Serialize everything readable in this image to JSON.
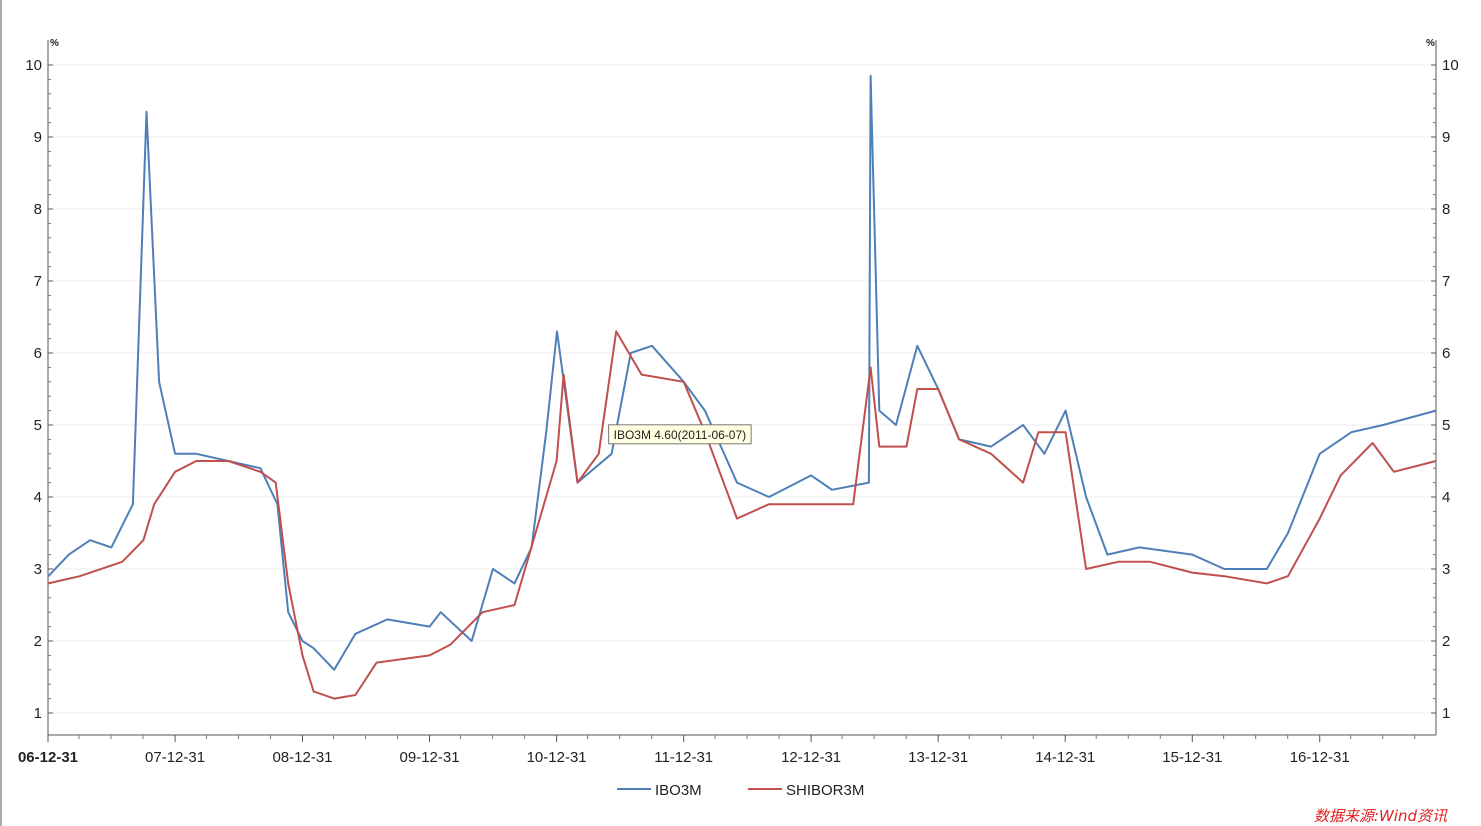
{
  "chart_data": {
    "type": "line",
    "title": "",
    "unit_left": "%",
    "unit_right": "%",
    "ylim": [
      1,
      10
    ],
    "y_ticks": [
      1,
      2,
      3,
      4,
      5,
      6,
      7,
      8,
      9,
      10
    ],
    "x_tick_labels": [
      "06-12-31",
      "07-12-31",
      "08-12-31",
      "09-12-31",
      "10-12-31",
      "11-12-31",
      "12-12-31",
      "13-12-31",
      "14-12-31",
      "15-12-31",
      "16-12-31"
    ],
    "x_range": [
      "2006-12-31",
      "2017-11-30"
    ],
    "grid": true,
    "legend_position": "bottom-center",
    "series": [
      {
        "name": "IBO3M",
        "color": "#4f7fb8",
        "points": [
          [
            "2007-01-01",
            2.9
          ],
          [
            "2007-03-01",
            3.2
          ],
          [
            "2007-05-01",
            3.4
          ],
          [
            "2007-07-01",
            3.3
          ],
          [
            "2007-09-01",
            3.9
          ],
          [
            "2007-10-10",
            9.35
          ],
          [
            "2007-11-15",
            5.6
          ],
          [
            "2007-12-31",
            4.6
          ],
          [
            "2008-03-01",
            4.6
          ],
          [
            "2008-06-01",
            4.5
          ],
          [
            "2008-09-01",
            4.4
          ],
          [
            "2008-10-20",
            3.9
          ],
          [
            "2008-11-20",
            2.4
          ],
          [
            "2008-12-31",
            2.0
          ],
          [
            "2009-02-01",
            1.9
          ],
          [
            "2009-04-01",
            1.6
          ],
          [
            "2009-06-01",
            2.1
          ],
          [
            "2009-09-01",
            2.3
          ],
          [
            "2009-12-31",
            2.2
          ],
          [
            "2010-02-01",
            2.4
          ],
          [
            "2010-05-01",
            2.0
          ],
          [
            "2010-07-01",
            3.0
          ],
          [
            "2010-09-01",
            2.8
          ],
          [
            "2010-10-20",
            3.3
          ],
          [
            "2010-12-01",
            4.9
          ],
          [
            "2011-01-01",
            6.3
          ],
          [
            "2011-03-01",
            4.2
          ],
          [
            "2011-06-07",
            4.6
          ],
          [
            "2011-08-01",
            6.0
          ],
          [
            "2011-10-01",
            6.1
          ],
          [
            "2011-12-31",
            5.6
          ],
          [
            "2012-03-01",
            5.2
          ],
          [
            "2012-06-01",
            4.2
          ],
          [
            "2012-09-01",
            4.0
          ],
          [
            "2012-12-31",
            4.3
          ],
          [
            "2013-03-01",
            4.1
          ],
          [
            "2013-06-15",
            4.2
          ],
          [
            "2013-06-20",
            9.85
          ],
          [
            "2013-07-15",
            5.2
          ],
          [
            "2013-09-01",
            5.0
          ],
          [
            "2013-11-01",
            6.1
          ],
          [
            "2013-12-31",
            5.5
          ],
          [
            "2014-03-01",
            4.8
          ],
          [
            "2014-06-01",
            4.7
          ],
          [
            "2014-09-01",
            5.0
          ],
          [
            "2014-11-01",
            4.6
          ],
          [
            "2015-01-01",
            5.2
          ],
          [
            "2015-03-01",
            4.0
          ],
          [
            "2015-05-01",
            3.2
          ],
          [
            "2015-08-01",
            3.3
          ],
          [
            "2015-12-31",
            3.2
          ],
          [
            "2016-04-01",
            3.0
          ],
          [
            "2016-08-01",
            3.0
          ],
          [
            "2016-10-01",
            3.5
          ],
          [
            "2016-12-31",
            4.6
          ],
          [
            "2017-04-01",
            4.9
          ],
          [
            "2017-07-01",
            5.0
          ],
          [
            "2017-11-30",
            5.2
          ]
        ]
      },
      {
        "name": "SHIBOR3M",
        "color": "#c0504d",
        "points": [
          [
            "2007-01-01",
            2.8
          ],
          [
            "2007-04-01",
            2.9
          ],
          [
            "2007-08-01",
            3.1
          ],
          [
            "2007-10-01",
            3.4
          ],
          [
            "2007-11-01",
            3.9
          ],
          [
            "2007-12-31",
            4.35
          ],
          [
            "2008-03-01",
            4.5
          ],
          [
            "2008-06-01",
            4.5
          ],
          [
            "2008-09-01",
            4.35
          ],
          [
            "2008-10-15",
            4.2
          ],
          [
            "2008-11-20",
            2.8
          ],
          [
            "2008-12-31",
            1.8
          ],
          [
            "2009-02-01",
            1.3
          ],
          [
            "2009-04-01",
            1.2
          ],
          [
            "2009-06-01",
            1.25
          ],
          [
            "2009-08-01",
            1.7
          ],
          [
            "2009-12-31",
            1.8
          ],
          [
            "2010-03-01",
            1.95
          ],
          [
            "2010-06-01",
            2.4
          ],
          [
            "2010-09-01",
            2.5
          ],
          [
            "2010-12-31",
            4.5
          ],
          [
            "2011-01-20",
            5.7
          ],
          [
            "2011-03-01",
            4.2
          ],
          [
            "2011-05-01",
            4.6
          ],
          [
            "2011-06-20",
            6.3
          ],
          [
            "2011-09-01",
            5.7
          ],
          [
            "2011-12-31",
            5.6
          ],
          [
            "2012-03-01",
            4.9
          ],
          [
            "2012-06-01",
            3.7
          ],
          [
            "2012-09-01",
            3.9
          ],
          [
            "2012-12-31",
            3.9
          ],
          [
            "2013-05-01",
            3.9
          ],
          [
            "2013-06-20",
            5.8
          ],
          [
            "2013-07-15",
            4.7
          ],
          [
            "2013-10-01",
            4.7
          ],
          [
            "2013-11-01",
            5.5
          ],
          [
            "2013-12-31",
            5.5
          ],
          [
            "2014-03-01",
            4.8
          ],
          [
            "2014-06-01",
            4.6
          ],
          [
            "2014-09-01",
            4.2
          ],
          [
            "2014-10-15",
            4.9
          ],
          [
            "2015-01-01",
            4.9
          ],
          [
            "2015-03-01",
            3.0
          ],
          [
            "2015-06-01",
            3.1
          ],
          [
            "2015-09-01",
            3.1
          ],
          [
            "2015-12-31",
            2.95
          ],
          [
            "2016-04-01",
            2.9
          ],
          [
            "2016-08-01",
            2.8
          ],
          [
            "2016-10-01",
            2.9
          ],
          [
            "2016-12-31",
            3.7
          ],
          [
            "2017-03-01",
            4.3
          ],
          [
            "2017-06-01",
            4.75
          ],
          [
            "2017-08-01",
            4.35
          ],
          [
            "2017-11-30",
            4.5
          ]
        ]
      }
    ],
    "annotations": [
      {
        "text": "IBO3M 4.60(2011-06-07)",
        "x": "2011-06-07",
        "y": 4.6
      }
    ]
  },
  "legend": {
    "items": [
      "IBO3M",
      "SHIBOR3M"
    ]
  },
  "footer": {
    "source": "数据来源:Wind资讯"
  }
}
